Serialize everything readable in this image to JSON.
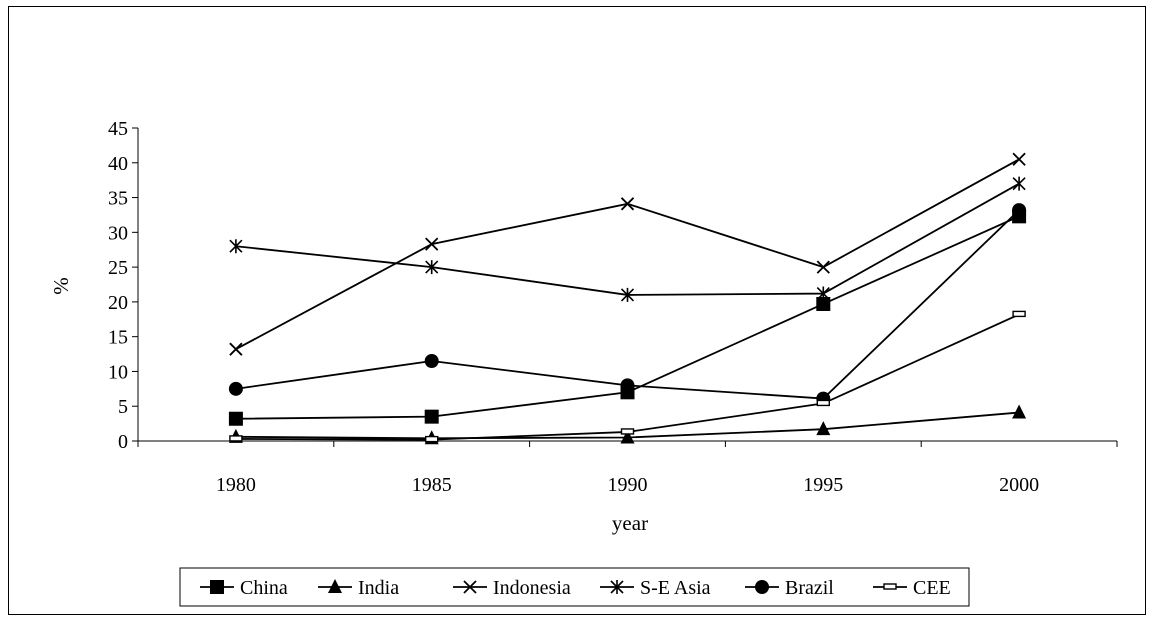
{
  "chart_data": {
    "type": "line",
    "title": "",
    "xlabel": "year",
    "ylabel": "%",
    "x": [
      1980,
      1985,
      1990,
      1995,
      2000
    ],
    "ylim": [
      0,
      45
    ],
    "yticks": [
      0,
      5,
      10,
      15,
      20,
      25,
      30,
      35,
      40,
      45
    ],
    "grid": false,
    "legend": "bottom",
    "series": [
      {
        "name": "China",
        "marker": "square",
        "values": [
          3.2,
          3.5,
          7.0,
          19.7,
          32.3
        ]
      },
      {
        "name": "India",
        "marker": "triangle",
        "values": [
          0.6,
          0.4,
          0.5,
          1.7,
          4.1
        ]
      },
      {
        "name": "Indonesia",
        "marker": "x",
        "values": [
          13.2,
          28.3,
          34.1,
          25.0,
          40.5
        ]
      },
      {
        "name": "S-E Asia",
        "marker": "star",
        "values": [
          28.0,
          25.0,
          21.0,
          21.2,
          37.0
        ]
      },
      {
        "name": "Brazil",
        "marker": "circle",
        "values": [
          7.5,
          11.5,
          8.0,
          6.1,
          33.2
        ]
      },
      {
        "name": "CEE",
        "marker": "dash",
        "values": [
          0.3,
          0.2,
          1.3,
          5.4,
          18.2
        ]
      }
    ]
  }
}
